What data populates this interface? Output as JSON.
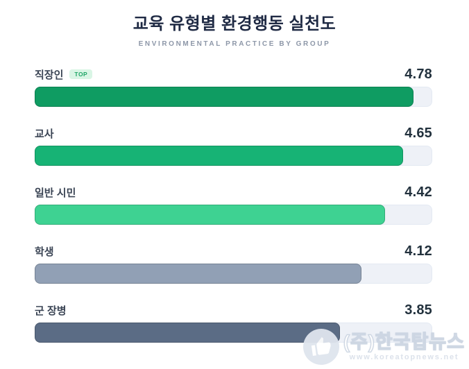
{
  "header": {
    "title": "교육 유형별 환경행동 실천도",
    "subtitle": "ENVIRONMENTAL PRACTICE BY GROUP"
  },
  "chart_data": {
    "type": "bar",
    "orientation": "horizontal",
    "title": "교육 유형별 환경행동 실천도",
    "subtitle": "ENVIRONMENTAL PRACTICE BY GROUP",
    "categories": [
      "직장인",
      "교사",
      "일반 시민",
      "학생",
      "군 장병"
    ],
    "values": [
      4.78,
      4.65,
      4.42,
      4.12,
      3.85
    ],
    "xlim": [
      0,
      5
    ],
    "value_decimals": 2,
    "bar_colors": [
      "#0f9c62",
      "#17b375",
      "#3ed292",
      "#91a0b5",
      "#5b6c85"
    ],
    "badges": [
      {
        "row_index": 0,
        "label": "TOP"
      }
    ],
    "track_color": "#eef1f7",
    "grid": false,
    "legend": false
  },
  "colors": {
    "title": "#1f2a44",
    "subtitle": "#8d97a8",
    "label": "#3a4454",
    "value": "#22313d",
    "badge_bg": "#d9f5e5",
    "badge_text": "#1fa566",
    "track": "#eef1f7",
    "bg": "#ffffff"
  },
  "watermark": {
    "icon": "thumbs-up-icon",
    "company": "(주)한국탑뉴스",
    "url": "www.koreatopnews.net"
  }
}
